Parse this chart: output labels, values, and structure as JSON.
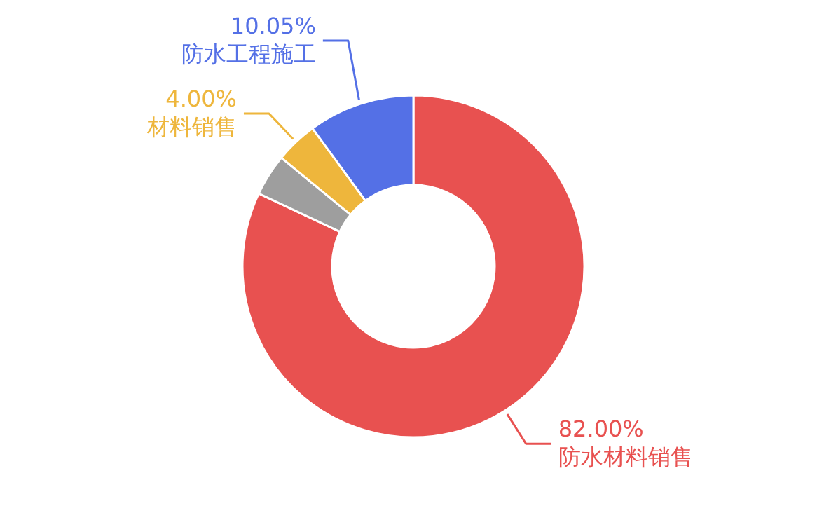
{
  "chart_data": {
    "type": "donut",
    "categories": [
      "防水材料销售",
      null,
      "材料销售",
      "防水工程施工"
    ],
    "values": [
      82.0,
      3.95,
      4.0,
      10.05
    ],
    "colors": [
      "#e85150",
      "#9e9e9e",
      "#eeb63c",
      "#5470e6"
    ],
    "value_labels": [
      "82.00%",
      null,
      "4.00%",
      "10.05%"
    ]
  }
}
